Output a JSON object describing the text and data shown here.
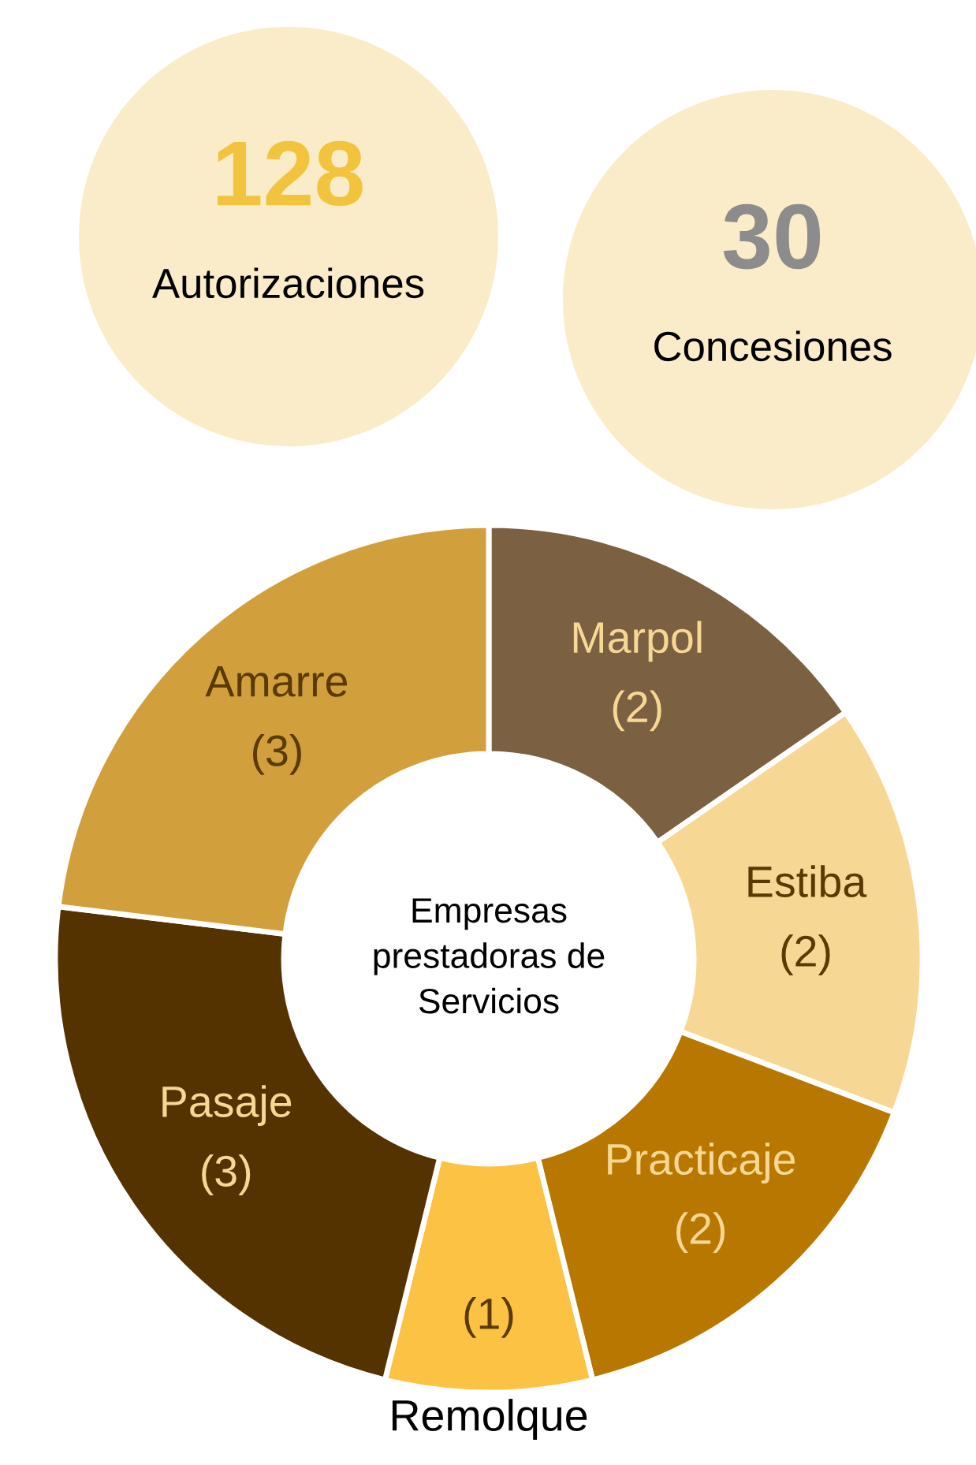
{
  "chart_data": [
    {
      "type": "other",
      "annotations": [
        "128",
        "Autorizaciones",
        "30",
        "Concesiones"
      ],
      "colors": [
        "#f2c43d",
        "#8c8c8c"
      ]
    },
    {
      "type": "donut",
      "title": "Empresas\nprestadoras de\nServicios",
      "categories": [
        "Marpol",
        "Estiba",
        "Practicaje",
        "Remolque",
        "Pasaje",
        "Amarre"
      ],
      "values": [
        2,
        2,
        2,
        1,
        3,
        3
      ],
      "value_labels": [
        "(2)",
        "(2)",
        "(2)",
        "(1)",
        "(3)",
        "(3)"
      ],
      "colors": [
        "#7b6142",
        "#f7d794",
        "#b87800",
        "#fbc243",
        "#553300",
        "#d1a03c"
      ]
    }
  ]
}
